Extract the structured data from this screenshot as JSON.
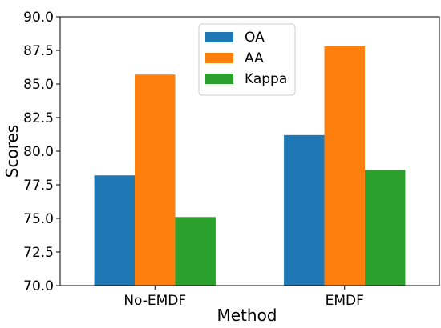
{
  "chart_data": {
    "type": "bar",
    "title": "",
    "xlabel": "Method",
    "ylabel": "Scores",
    "categories": [
      "No-EMDF",
      "EMDF"
    ],
    "series": [
      {
        "name": "OA",
        "color": "#1f77b4",
        "values": [
          78.2,
          81.2
        ]
      },
      {
        "name": "AA",
        "color": "#ff7f0e",
        "values": [
          85.7,
          87.8
        ]
      },
      {
        "name": "Kappa",
        "color": "#2ca02c",
        "values": [
          75.1,
          78.6
        ]
      }
    ],
    "ylim": [
      70.0,
      90.0
    ],
    "yticks": [
      "70.0",
      "72.5",
      "75.0",
      "77.5",
      "80.0",
      "82.5",
      "85.0",
      "87.5",
      "90.0"
    ],
    "grid": false,
    "legend_position": "top-center"
  }
}
